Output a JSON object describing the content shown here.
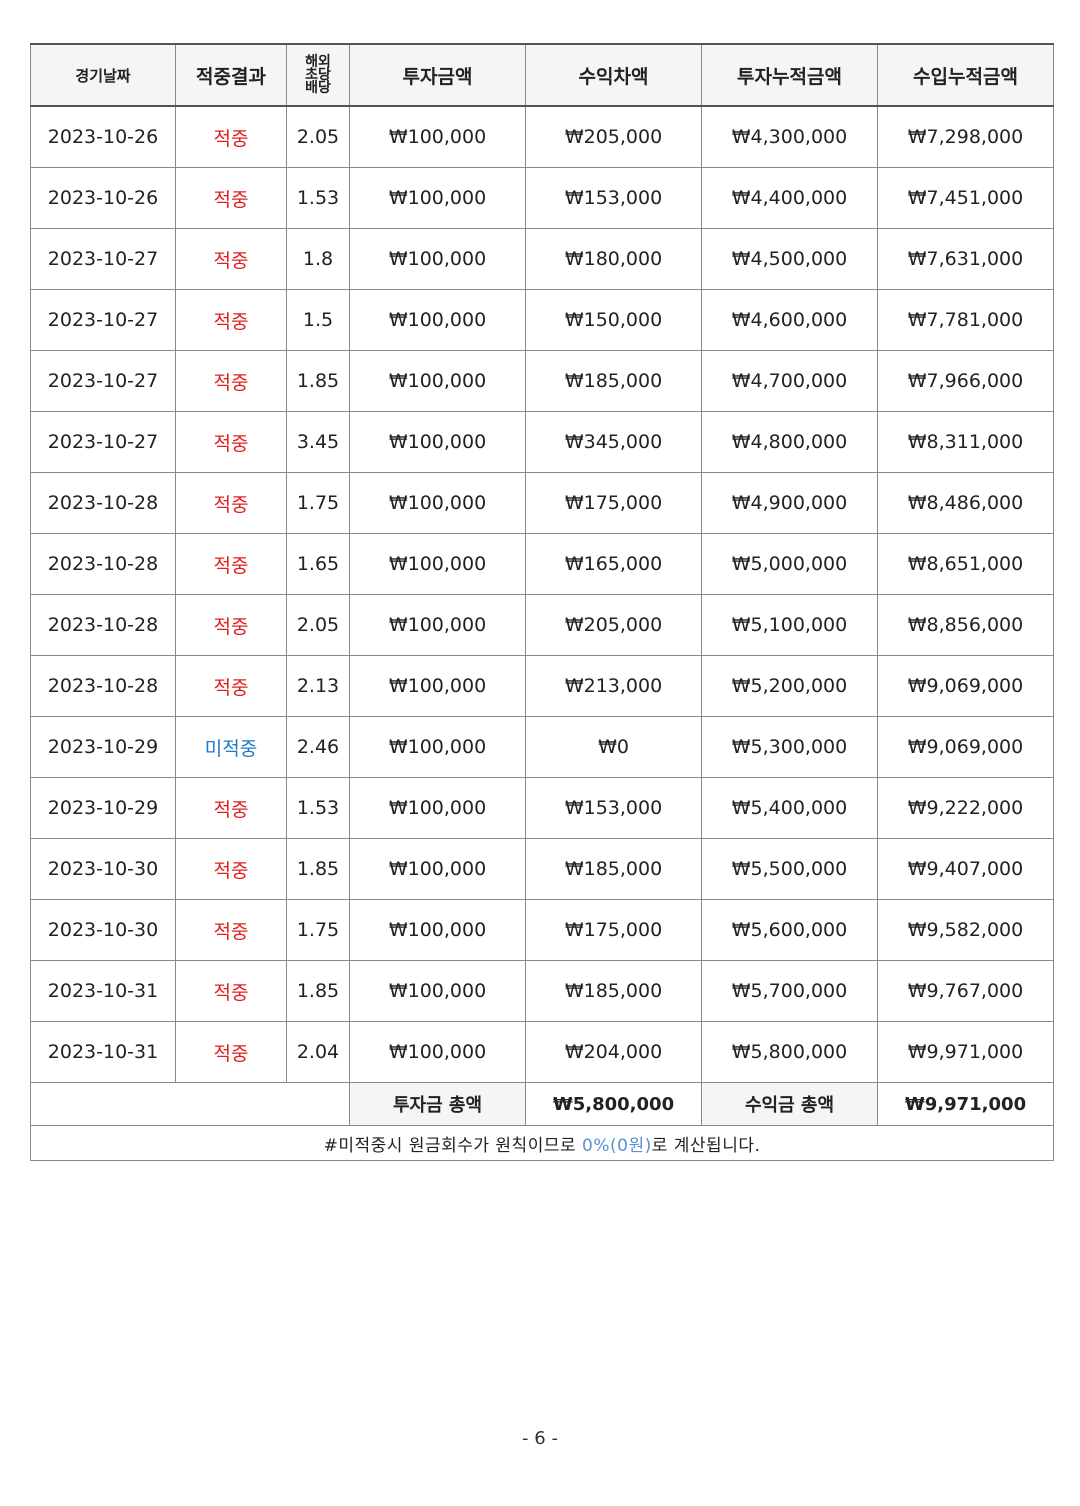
{
  "table": {
    "headers": {
      "date": "경기날짜",
      "result": "적중결과",
      "odds_line1": "해외",
      "odds_line2": "초당",
      "odds_line3": "배당",
      "invest": "투자금액",
      "profit": "수익차액",
      "invest_cum": "투자누적금액",
      "income_cum": "수입누적금액"
    },
    "rows": [
      {
        "date": "2023-10-26",
        "result": "적중",
        "odds": "2.05",
        "invest": "₩100,000",
        "profit": "₩205,000",
        "invest_cum": "₩4,300,000",
        "income_cum": "₩7,298,000"
      },
      {
        "date": "2023-10-26",
        "result": "적중",
        "odds": "1.53",
        "invest": "₩100,000",
        "profit": "₩153,000",
        "invest_cum": "₩4,400,000",
        "income_cum": "₩7,451,000"
      },
      {
        "date": "2023-10-27",
        "result": "적중",
        "odds": "1.8",
        "invest": "₩100,000",
        "profit": "₩180,000",
        "invest_cum": "₩4,500,000",
        "income_cum": "₩7,631,000"
      },
      {
        "date": "2023-10-27",
        "result": "적중",
        "odds": "1.5",
        "invest": "₩100,000",
        "profit": "₩150,000",
        "invest_cum": "₩4,600,000",
        "income_cum": "₩7,781,000"
      },
      {
        "date": "2023-10-27",
        "result": "적중",
        "odds": "1.85",
        "invest": "₩100,000",
        "profit": "₩185,000",
        "invest_cum": "₩4,700,000",
        "income_cum": "₩7,966,000"
      },
      {
        "date": "2023-10-27",
        "result": "적중",
        "odds": "3.45",
        "invest": "₩100,000",
        "profit": "₩345,000",
        "invest_cum": "₩4,800,000",
        "income_cum": "₩8,311,000"
      },
      {
        "date": "2023-10-28",
        "result": "적중",
        "odds": "1.75",
        "invest": "₩100,000",
        "profit": "₩175,000",
        "invest_cum": "₩4,900,000",
        "income_cum": "₩8,486,000"
      },
      {
        "date": "2023-10-28",
        "result": "적중",
        "odds": "1.65",
        "invest": "₩100,000",
        "profit": "₩165,000",
        "invest_cum": "₩5,000,000",
        "income_cum": "₩8,651,000"
      },
      {
        "date": "2023-10-28",
        "result": "적중",
        "odds": "2.05",
        "invest": "₩100,000",
        "profit": "₩205,000",
        "invest_cum": "₩5,100,000",
        "income_cum": "₩8,856,000"
      },
      {
        "date": "2023-10-28",
        "result": "적중",
        "odds": "2.13",
        "invest": "₩100,000",
        "profit": "₩213,000",
        "invest_cum": "₩5,200,000",
        "income_cum": "₩9,069,000"
      },
      {
        "date": "2023-10-29",
        "result": "미적중",
        "odds": "2.46",
        "invest": "₩100,000",
        "profit": "₩0",
        "invest_cum": "₩5,300,000",
        "income_cum": "₩9,069,000"
      },
      {
        "date": "2023-10-29",
        "result": "적중",
        "odds": "1.53",
        "invest": "₩100,000",
        "profit": "₩153,000",
        "invest_cum": "₩5,400,000",
        "income_cum": "₩9,222,000"
      },
      {
        "date": "2023-10-30",
        "result": "적중",
        "odds": "1.85",
        "invest": "₩100,000",
        "profit": "₩185,000",
        "invest_cum": "₩5,500,000",
        "income_cum": "₩9,407,000"
      },
      {
        "date": "2023-10-30",
        "result": "적중",
        "odds": "1.75",
        "invest": "₩100,000",
        "profit": "₩175,000",
        "invest_cum": "₩5,600,000",
        "income_cum": "₩9,582,000"
      },
      {
        "date": "2023-10-31",
        "result": "적중",
        "odds": "1.85",
        "invest": "₩100,000",
        "profit": "₩185,000",
        "invest_cum": "₩5,700,000",
        "income_cum": "₩9,767,000"
      },
      {
        "date": "2023-10-31",
        "result": "적중",
        "odds": "2.04",
        "invest": "₩100,000",
        "profit": "₩204,000",
        "invest_cum": "₩5,800,000",
        "income_cum": "₩9,971,000"
      }
    ],
    "totals": {
      "invest_label": "투자금 총액",
      "invest_value": "₩5,800,000",
      "income_label": "수익금 총액",
      "income_value": "₩9,971,000"
    },
    "note": {
      "prefix": "#미적중시 원금회수가 원칙이므로 ",
      "highlight": "0%(0원)",
      "suffix": "로 계산됩니다."
    }
  },
  "colors": {
    "hit": "#e02020",
    "miss": "#1f78c8",
    "note_highlight": "#5b8fd0"
  },
  "page_number": "- 6 -"
}
